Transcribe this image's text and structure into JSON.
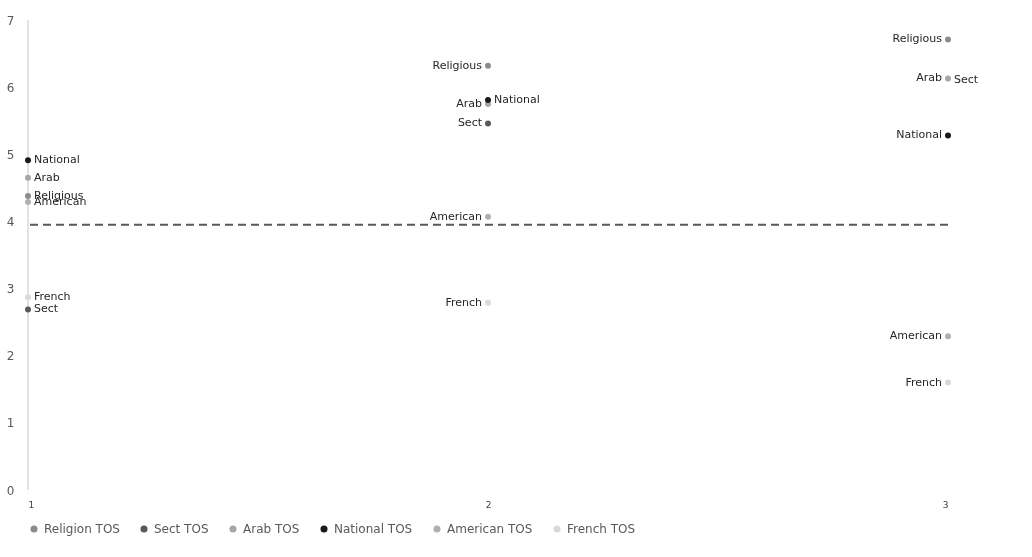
{
  "chart_data": {
    "type": "scatter",
    "x": [
      1,
      2,
      3
    ],
    "series": [
      {
        "name": "Religion TOS",
        "color": "#8c8c8c",
        "values": [
          4.38,
          6.32,
          6.71
        ]
      },
      {
        "name": "Sect TOS",
        "color": "#595959",
        "values": [
          2.69,
          5.46,
          null
        ]
      },
      {
        "name": "Arab TOS",
        "color": "#a6a6a6",
        "values": [
          4.65,
          5.75,
          6.13
        ]
      },
      {
        "name": "National TOS",
        "color": "#1a1a1a",
        "values": [
          4.91,
          5.81,
          5.28
        ]
      },
      {
        "name": "American TOS",
        "color": "#b0b0b0",
        "values": [
          4.29,
          4.07,
          2.29
        ]
      },
      {
        "name": "French TOS",
        "color": "#d9d9d9",
        "values": [
          2.87,
          2.79,
          1.6
        ]
      }
    ],
    "xlim": [
      1,
      3
    ],
    "xticks": [
      1,
      2,
      3
    ],
    "ylim": [
      0,
      7
    ],
    "yticks": [
      0,
      1,
      2,
      3,
      4,
      5,
      6,
      7
    ],
    "ref_lines": [
      {
        "axis": "y",
        "value": 3.95,
        "color": "#595959",
        "line_style": "dashed"
      }
    ],
    "marker": "circle",
    "legend": "bottom",
    "grid": false,
    "annotations": [
      {
        "text": "National",
        "x": 1,
        "y": 4.91
      },
      {
        "text": "Arab",
        "x": 1,
        "y": 4.65
      },
      {
        "text": "Religious",
        "x": 1,
        "y": 4.38
      },
      {
        "text": "American",
        "x": 1,
        "y": 4.29
      },
      {
        "text": "French",
        "x": 1,
        "y": 2.87
      },
      {
        "text": "Sect",
        "x": 1,
        "y": 2.69
      },
      {
        "text": "Religious",
        "x": 2,
        "y": 6.32
      },
      {
        "text": "Arab",
        "x": 2,
        "y": 5.75
      },
      {
        "text": "National",
        "x": 2,
        "y": 5.81
      },
      {
        "text": "Sect",
        "x": 2,
        "y": 5.46
      },
      {
        "text": "American",
        "x": 2,
        "y": 4.07
      },
      {
        "text": "French",
        "x": 2,
        "y": 2.79
      },
      {
        "text": "Religious",
        "x": 3,
        "y": 6.71
      },
      {
        "text": "Arab",
        "x": 3,
        "y": 6.13
      },
      {
        "text": "Sect",
        "x": 3,
        "y": 6.1
      },
      {
        "text": "National",
        "x": 3,
        "y": 5.28
      },
      {
        "text": "American",
        "x": 3,
        "y": 2.29
      },
      {
        "text": "French",
        "x": 3,
        "y": 1.6
      }
    ]
  }
}
